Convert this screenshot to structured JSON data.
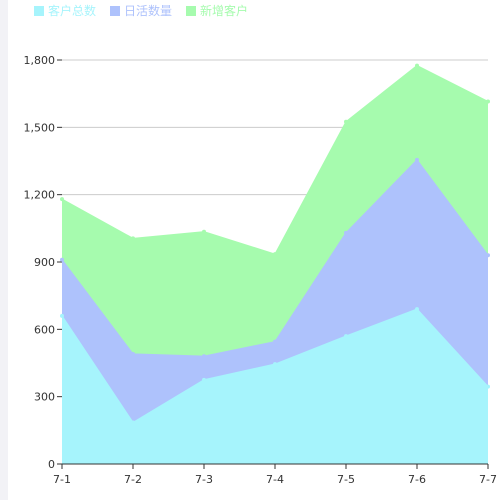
{
  "chart_data": {
    "type": "area",
    "stacked": true,
    "categories": [
      "7-1",
      "7-2",
      "7-3",
      "7-4",
      "7-5",
      "7-6",
      "7-7"
    ],
    "y_ticks": [
      "0",
      "300",
      "600",
      "900",
      "1,200",
      "1,500",
      "1,800"
    ],
    "ylim": [
      0,
      1800
    ],
    "grid": true,
    "legend_position": "top-left",
    "series": [
      {
        "name": "客户总数",
        "color": "#A6F4FC",
        "values": [
          660,
          185,
          375,
          445,
          570,
          690,
          345
        ]
      },
      {
        "name": "日活数量",
        "color": "#AEC2FC",
        "values": [
          250,
          305,
          105,
          100,
          460,
          665,
          585
        ]
      },
      {
        "name": "新增客户",
        "color": "#A6FBAE",
        "values": [
          270,
          515,
          555,
          390,
          495,
          420,
          685
        ]
      }
    ]
  }
}
